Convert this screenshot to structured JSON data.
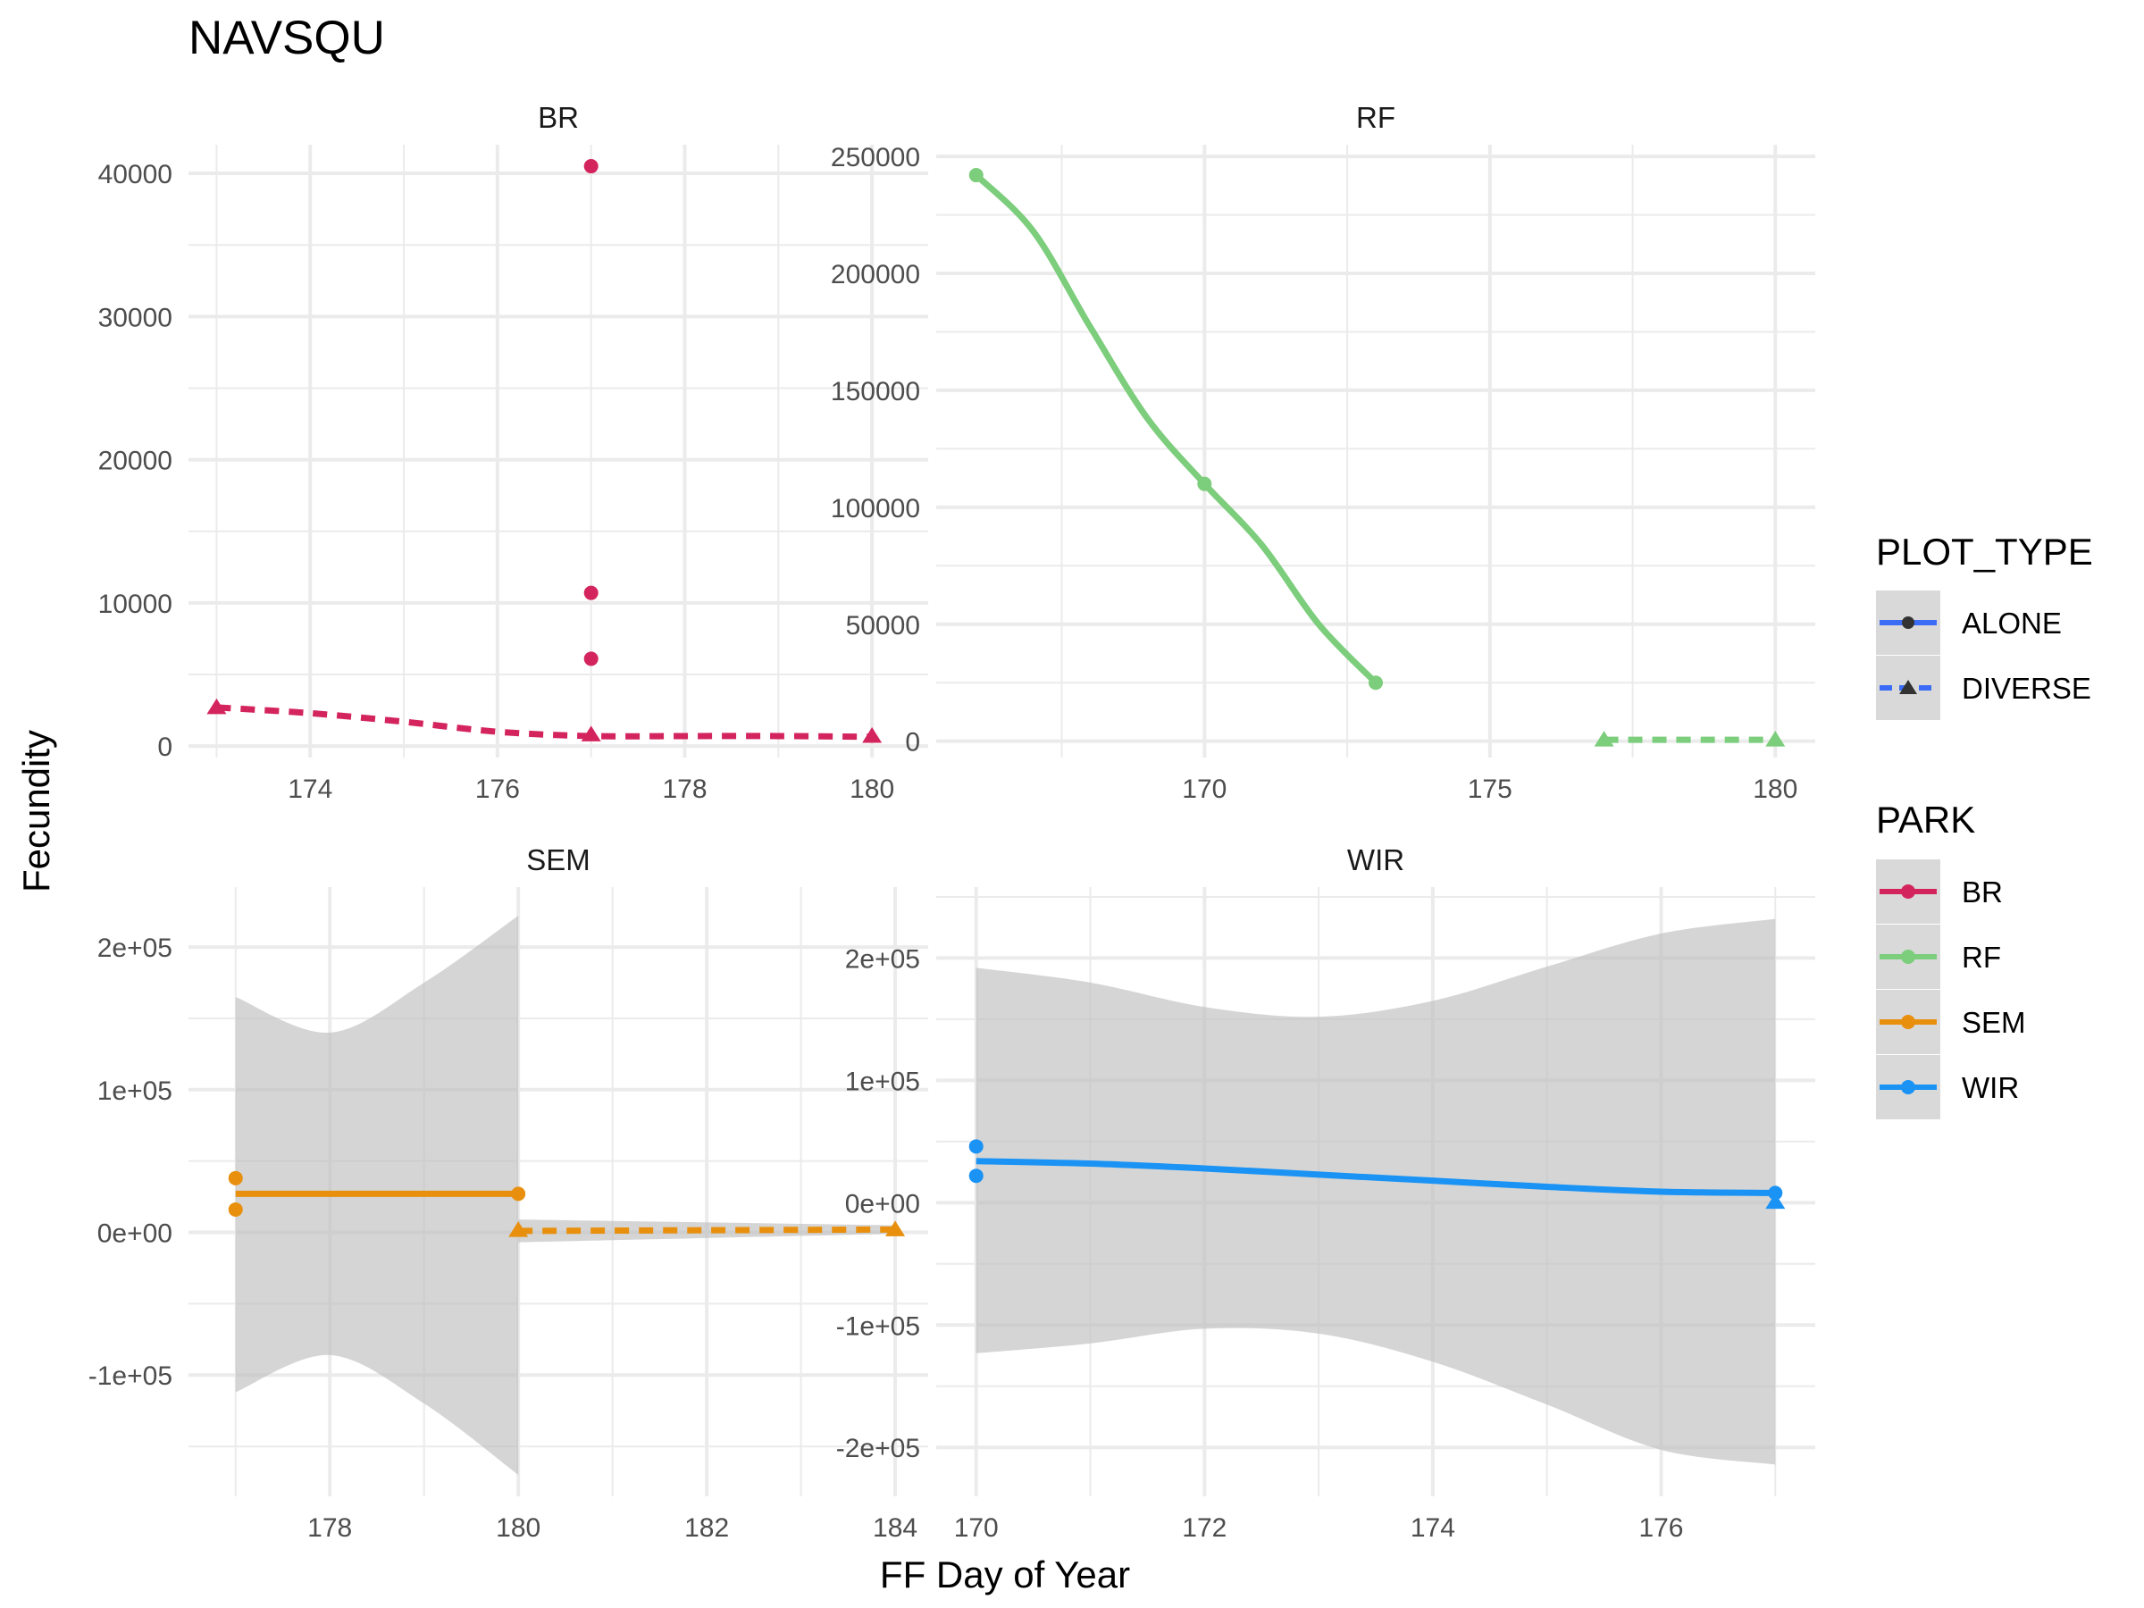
{
  "title": "NAVSQU",
  "xlabel": "FF Day of Year",
  "ylabel": "Fecundity",
  "legend": {
    "placement": "right",
    "plot_type": {
      "title": "PLOT_TYPE",
      "entries": [
        {
          "label": "ALONE",
          "linetype": "solid",
          "shape": "circle"
        },
        {
          "label": "DIVERSE",
          "linetype": "dashed",
          "shape": "triangle"
        }
      ]
    },
    "park": {
      "title": "PARK",
      "entries": [
        {
          "label": "BR",
          "color": "#D4245E"
        },
        {
          "label": "RF",
          "color": "#7CCD7C"
        },
        {
          "label": "SEM",
          "color": "#E8900E"
        },
        {
          "label": "WIR",
          "color": "#1A93F5"
        }
      ]
    }
  },
  "colors": {
    "ALONE_legend_line": "#3B6CF6",
    "band": "#BEBEBE",
    "grid": "#EBEBEB"
  },
  "chart_data": [
    {
      "type": "line",
      "panel": "BR",
      "color": "#D4245E",
      "grid": true,
      "xlim": [
        172.7,
        180.6
      ],
      "ylim": [
        -800,
        42000
      ],
      "xticks": [
        174,
        176,
        178,
        180
      ],
      "xtick_labels": [
        "174",
        "176",
        "178",
        "180"
      ],
      "yticks": [
        0,
        10000,
        20000,
        30000,
        40000
      ],
      "ytick_labels": [
        "0",
        "10000",
        "20000",
        "30000",
        "40000"
      ],
      "series": [
        {
          "plot_type": "ALONE",
          "points": [
            [
              177,
              40500
            ],
            [
              177,
              10700
            ],
            [
              177,
              6100
            ]
          ],
          "smooth": []
        },
        {
          "plot_type": "DIVERSE",
          "points": [
            [
              173,
              2700
            ],
            [
              177,
              800
            ],
            [
              180,
              700
            ]
          ],
          "smooth": [
            [
              173,
              2700
            ],
            [
              174,
              2300
            ],
            [
              175,
              1700
            ],
            [
              176,
              1000
            ],
            [
              177,
              700
            ],
            [
              178,
              700
            ],
            [
              179,
              700
            ],
            [
              180,
              650
            ]
          ]
        }
      ]
    },
    {
      "type": "line",
      "panel": "RF",
      "color": "#7CCD7C",
      "grid": true,
      "xlim": [
        165.3,
        180.7
      ],
      "ylim": [
        -7000,
        255000
      ],
      "xticks": [
        170,
        175,
        180
      ],
      "xtick_labels": [
        "170",
        "175",
        "180"
      ],
      "yticks": [
        0,
        50000,
        100000,
        150000,
        200000,
        250000
      ],
      "ytick_labels": [
        "0",
        "50000",
        "100000",
        "150000",
        "200000",
        "250000"
      ],
      "series": [
        {
          "plot_type": "ALONE",
          "points": [
            [
              166,
              242000
            ],
            [
              170,
              110000
            ],
            [
              173,
              25000
            ]
          ],
          "smooth": [
            [
              166,
              242000
            ],
            [
              167,
              218000
            ],
            [
              168,
              177000
            ],
            [
              169,
              138000
            ],
            [
              170,
              110000
            ],
            [
              171,
              84000
            ],
            [
              172,
              50000
            ],
            [
              173,
              25000
            ]
          ]
        },
        {
          "plot_type": "DIVERSE",
          "points": [
            [
              177,
              600
            ],
            [
              180,
              600
            ]
          ],
          "smooth": [
            [
              177,
              600
            ],
            [
              180,
              600
            ]
          ]
        }
      ]
    },
    {
      "type": "line",
      "panel": "SEM",
      "color": "#E8900E",
      "grid": true,
      "xlim": [
        176.5,
        184.35
      ],
      "ylim": [
        -185000,
        242000
      ],
      "xticks": [
        178,
        180,
        182,
        184
      ],
      "xtick_labels": [
        "178",
        "180",
        "182",
        "184"
      ],
      "yticks": [
        -100000,
        0,
        100000,
        200000
      ],
      "ytick_labels": [
        "-1e+05",
        "0e+00",
        "1e+05",
        "2e+05"
      ],
      "series": [
        {
          "plot_type": "ALONE",
          "points": [
            [
              177,
              38000
            ],
            [
              177,
              16000
            ],
            [
              180,
              27000
            ]
          ],
          "smooth": [
            [
              177,
              27000
            ],
            [
              180,
              27000
            ]
          ],
          "band_upper": [
            [
              177,
              165000
            ],
            [
              178,
              140000
            ],
            [
              179,
              175000
            ],
            [
              180,
              222000
            ]
          ],
          "band_lower": [
            [
              177,
              -112000
            ],
            [
              178,
              -86000
            ],
            [
              179,
              -120000
            ],
            [
              180,
              -170000
            ]
          ]
        },
        {
          "plot_type": "DIVERSE",
          "points": [
            [
              180,
              1500
            ],
            [
              184,
              2000
            ]
          ],
          "smooth": [
            [
              180,
              1000
            ],
            [
              182,
              1500
            ],
            [
              184,
              2000
            ]
          ],
          "band_upper": [
            [
              180,
              9000
            ],
            [
              184,
              5000
            ]
          ],
          "band_lower": [
            [
              180,
              -7000
            ],
            [
              184,
              -1000
            ]
          ]
        }
      ]
    },
    {
      "type": "line",
      "panel": "WIR",
      "color": "#1A93F5",
      "grid": true,
      "xlim": [
        169.65,
        177.35
      ],
      "ylim": [
        -240000,
        258000
      ],
      "xticks": [
        170,
        172,
        174,
        176
      ],
      "xtick_labels": [
        "170",
        "172",
        "174",
        "176"
      ],
      "yticks": [
        -200000,
        -100000,
        0,
        100000,
        200000
      ],
      "ytick_labels": [
        "-2e+05",
        "-1e+05",
        "0e+00",
        "1e+05",
        "2e+05"
      ],
      "series": [
        {
          "plot_type": "ALONE",
          "points": [
            [
              170,
              46000
            ],
            [
              170,
              22000
            ],
            [
              177,
              8000
            ]
          ],
          "smooth": [
            [
              170,
              34000
            ],
            [
              171,
              32000
            ],
            [
              172,
              28000
            ],
            [
              173,
              23000
            ],
            [
              174,
              18000
            ],
            [
              175,
              13000
            ],
            [
              176,
              9000
            ],
            [
              177,
              8000
            ]
          ],
          "band_upper": [
            [
              170,
              192000
            ],
            [
              171,
              180000
            ],
            [
              172,
              160000
            ],
            [
              173,
              152000
            ],
            [
              174,
              165000
            ],
            [
              175,
              193000
            ],
            [
              176,
              220000
            ],
            [
              177,
              232000
            ]
          ],
          "band_lower": [
            [
              170,
              -123000
            ],
            [
              171,
              -115000
            ],
            [
              172,
              -103000
            ],
            [
              173,
              -107000
            ],
            [
              174,
              -130000
            ],
            [
              175,
              -165000
            ],
            [
              176,
              -202000
            ],
            [
              177,
              -214000
            ]
          ]
        },
        {
          "plot_type": "DIVERSE",
          "points": [
            [
              177,
              500
            ]
          ],
          "smooth": []
        }
      ]
    }
  ]
}
